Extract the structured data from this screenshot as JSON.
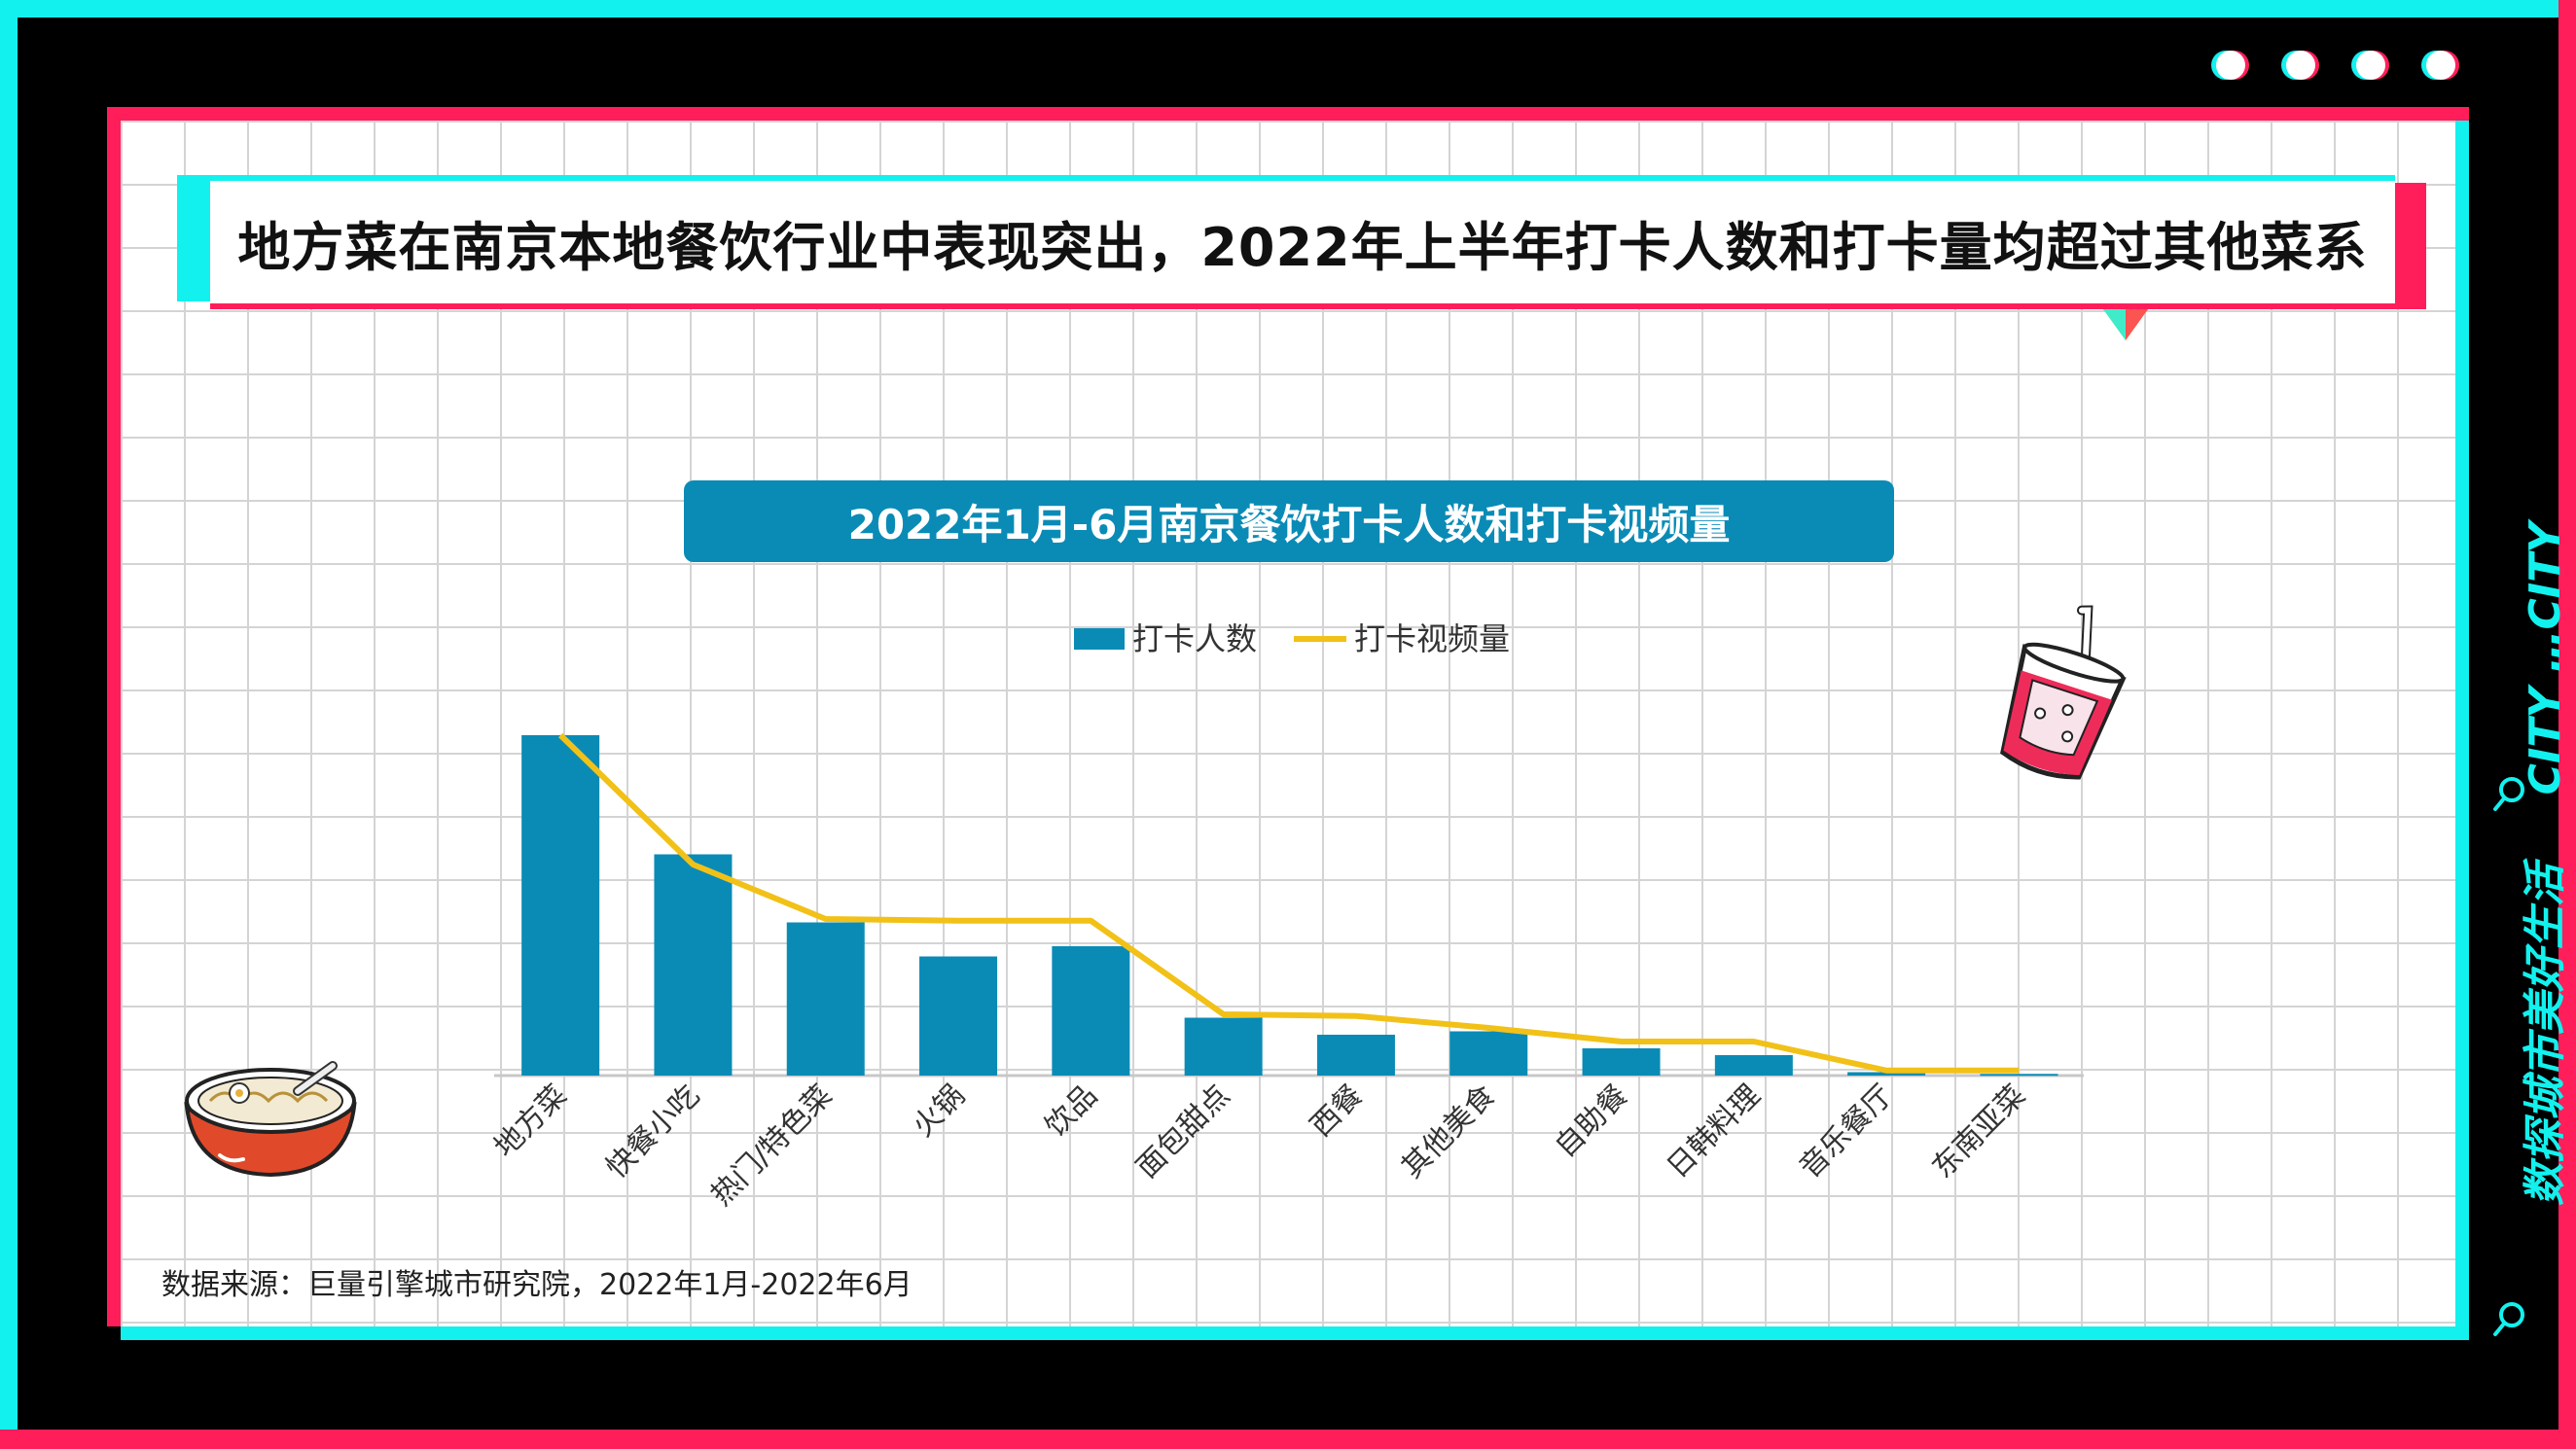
{
  "headline": "地方菜在南京本地餐饮行业中表现突出，2022年上半年打卡人数和打卡量均超过其他菜系",
  "side_text": {
    "slogan": "数探城市美好生活",
    "brand": "CITY …CITY"
  },
  "source": "数据来源：巨量引擎城市研究院，2022年1月-2022年6月",
  "colors": {
    "cyan": "#13f1ee",
    "pink": "#ff1e5a",
    "bar": "#0a8bb6",
    "line": "#f2c118"
  },
  "icons": [
    "search-icon",
    "noodle-bowl-icon",
    "drink-cup-icon"
  ],
  "chart_data": {
    "type": "bar",
    "title": "2022年1月-6月南京餐饮打卡人数和打卡视频量",
    "categories": [
      "地方菜",
      "快餐小吃",
      "热门/特色菜",
      "火锅",
      "饮品",
      "面包甜点",
      "西餐",
      "其他美食",
      "自助餐",
      "日韩料理",
      "音乐餐厅",
      "东南亚菜"
    ],
    "series": [
      {
        "name": "打卡人数",
        "type": "bar",
        "values": [
          100,
          65,
          45,
          35,
          38,
          17,
          12,
          13,
          8,
          6,
          1,
          0.5
        ]
      },
      {
        "name": "打卡视频量",
        "type": "line",
        "values": [
          100,
          62,
          46,
          45.5,
          45.5,
          18,
          17.5,
          14,
          10,
          10,
          1.5,
          1.5
        ]
      }
    ],
    "legend": "top-center",
    "y_axis_visible": false,
    "grid": false
  }
}
